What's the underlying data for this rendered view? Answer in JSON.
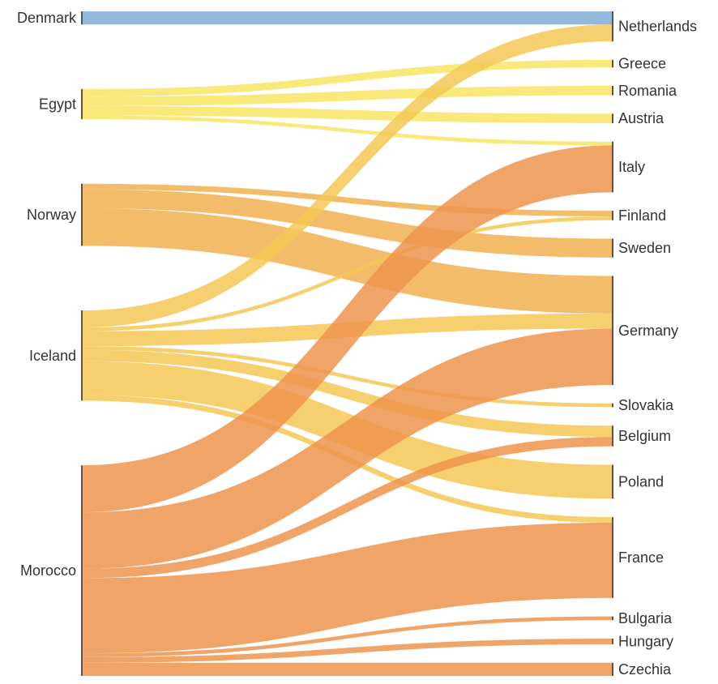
{
  "chart_data": {
    "type": "sankey",
    "title": "",
    "sources": [
      "Denmark",
      "Egypt",
      "Norway",
      "Iceland",
      "Morocco"
    ],
    "targets": [
      "Netherlands",
      "Greece",
      "Romania",
      "Austria",
      "Italy",
      "Finland",
      "Sweden",
      "Germany",
      "Slovakia",
      "Belgium",
      "Poland",
      "France",
      "Bulgaria",
      "Hungary",
      "Czechia"
    ],
    "colors": {
      "Denmark": "#7facd6",
      "Egypt": "#f8e463",
      "Norway": "#f0b050",
      "Iceland": "#f5c855",
      "Morocco": "#ee944d"
    },
    "links": [
      {
        "source": "Denmark",
        "target": "Netherlands",
        "value": 7
      },
      {
        "source": "Egypt",
        "target": "Greece",
        "value": 4
      },
      {
        "source": "Egypt",
        "target": "Romania",
        "value": 5
      },
      {
        "source": "Egypt",
        "target": "Austria",
        "value": 5
      },
      {
        "source": "Egypt",
        "target": "Italy",
        "value": 2
      },
      {
        "source": "Norway",
        "target": "Finland",
        "value": 3
      },
      {
        "source": "Norway",
        "target": "Sweden",
        "value": 10
      },
      {
        "source": "Norway",
        "target": "Germany",
        "value": 20
      },
      {
        "source": "Iceland",
        "target": "Netherlands",
        "value": 9
      },
      {
        "source": "Iceland",
        "target": "Finland",
        "value": 2
      },
      {
        "source": "Iceland",
        "target": "Germany",
        "value": 8
      },
      {
        "source": "Iceland",
        "target": "Slovakia",
        "value": 2
      },
      {
        "source": "Iceland",
        "target": "Belgium",
        "value": 6
      },
      {
        "source": "Iceland",
        "target": "Poland",
        "value": 18
      },
      {
        "source": "Iceland",
        "target": "France",
        "value": 3
      },
      {
        "source": "Morocco",
        "target": "Italy",
        "value": 25
      },
      {
        "source": "Morocco",
        "target": "Germany",
        "value": 30
      },
      {
        "source": "Morocco",
        "target": "Belgium",
        "value": 5
      },
      {
        "source": "Morocco",
        "target": "France",
        "value": 40
      },
      {
        "source": "Morocco",
        "target": "Bulgaria",
        "value": 2
      },
      {
        "source": "Morocco",
        "target": "Hungary",
        "value": 3
      },
      {
        "source": "Morocco",
        "target": "Czechia",
        "value": 7
      }
    ]
  }
}
